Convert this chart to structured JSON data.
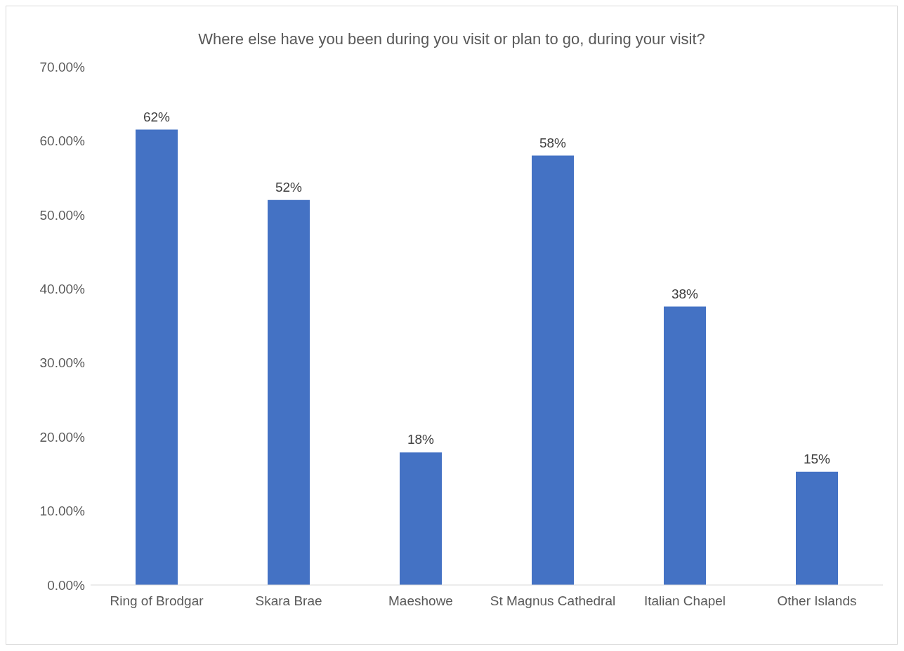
{
  "chart_data": {
    "type": "bar",
    "title": "Where else have you been during you visit or plan to go, during your visit?",
    "categories": [
      "Ring of Brodgar",
      "Skara Brae",
      "Maeshowe",
      "St Magnus Cathedral",
      "Italian Chapel",
      "Other Islands"
    ],
    "values": [
      61.5,
      52,
      17.9,
      58,
      37.6,
      15.3
    ],
    "value_labels": [
      "62%",
      "52%",
      "18%",
      "58%",
      "38%",
      "15%"
    ],
    "color": "#4472c4",
    "ylim": [
      0,
      70
    ],
    "yticks": [
      {
        "value": 0,
        "label": "0.00%"
      },
      {
        "value": 10,
        "label": "10.00%"
      },
      {
        "value": 20,
        "label": "20.00%"
      },
      {
        "value": 30,
        "label": "30.00%"
      },
      {
        "value": 40,
        "label": "40.00%"
      },
      {
        "value": 50,
        "label": "50.00%"
      },
      {
        "value": 60,
        "label": "60.00%"
      },
      {
        "value": 70,
        "label": "70.00%"
      }
    ],
    "grid": false,
    "legend": false
  }
}
